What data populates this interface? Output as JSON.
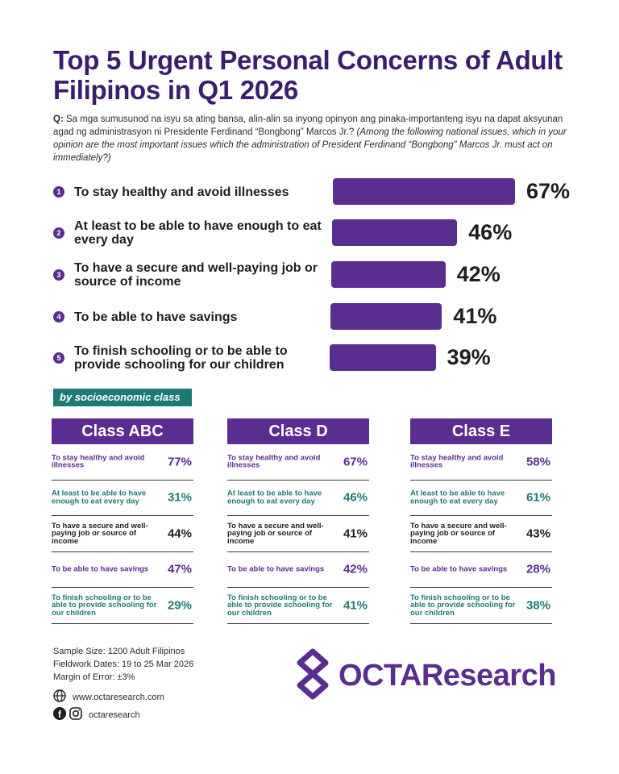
{
  "title": "Top 5 Urgent Personal Concerns of Adult Filipinos in Q1 2026",
  "question": {
    "prefix": "Q:",
    "tagalog": "Sa mga sumusunod na isyu sa ating bansa, alin-alin sa inyong opinyon ang pinaka-importanteng isyu na dapat aksyunan agad ng administrasyon ni Presidente Ferdinand “Bongbong” Marcos Jr.?",
    "english": "(Among the following national issues, which in your opinion are the most important issues which the administration of President Ferdinand “Bongbong” Marcos Jr. must act on immediately?)"
  },
  "chart_data": {
    "type": "bar",
    "categories": [
      "To stay healthy and avoid illnesses",
      "At least to be able to have enough to eat every day",
      "To have a secure and well-paying job or source of income",
      "To be able to have savings",
      "To finish schooling or to be able to provide schooling for our children"
    ],
    "ranks": [
      "1",
      "2",
      "3",
      "4",
      "5"
    ],
    "values": [
      67,
      46,
      42,
      41,
      39
    ],
    "value_labels": [
      "67%",
      "46%",
      "42%",
      "41%",
      "39%"
    ],
    "bar_color": "#5a2d91"
  },
  "segment_tag": "by socioeconomic class",
  "classes": [
    {
      "name": "Class ABC",
      "rows": [
        {
          "label": "To stay healthy and avoid illnesses",
          "value": "77%",
          "color": "#5a2d91"
        },
        {
          "label": "At least to be able to have enough to eat every day",
          "value": "31%",
          "color": "#1f7a74"
        },
        {
          "label": "To have a secure and well-paying job or source of income",
          "value": "44%",
          "color": "#1e1e1e"
        },
        {
          "label": "To be able to have savings",
          "value": "47%",
          "color": "#5a2d91"
        },
        {
          "label": "To finish schooling or to be able to provide schooling for our children",
          "value": "29%",
          "color": "#1f7a74"
        }
      ]
    },
    {
      "name": "Class D",
      "rows": [
        {
          "label": "To stay healthy and avoid illnesses",
          "value": "67%",
          "color": "#5a2d91"
        },
        {
          "label": "At least to be able to have enough to eat every day",
          "value": "46%",
          "color": "#1f7a74"
        },
        {
          "label": "To have a secure and well-paying job or source of income",
          "value": "41%",
          "color": "#1e1e1e"
        },
        {
          "label": "To be able to have savings",
          "value": "42%",
          "color": "#5a2d91"
        },
        {
          "label": "To finish schooling or to be able to provide schooling for our children",
          "value": "41%",
          "color": "#1f7a74"
        }
      ]
    },
    {
      "name": "Class E",
      "rows": [
        {
          "label": "To stay healthy and avoid illnesses",
          "value": "58%",
          "color": "#5a2d91"
        },
        {
          "label": "At least to be able to have enough to eat every day",
          "value": "61%",
          "color": "#1f7a74"
        },
        {
          "label": "To have a secure and well-paying job or source of income",
          "value": "43%",
          "color": "#1e1e1e"
        },
        {
          "label": "To be able to have savings",
          "value": "28%",
          "color": "#5a2d91"
        },
        {
          "label": "To finish schooling or to be able to provide schooling for our children",
          "value": "38%",
          "color": "#1f7a74"
        }
      ]
    }
  ],
  "footer": {
    "sample_size": "Sample Size: 1200 Adult Filipinos",
    "fieldwork": "Fieldwork Dates: 19 to 25 Mar 2026",
    "margin": "Margin of Error: ±3%",
    "website": "www.octaresearch.com",
    "social": "octaresearch"
  },
  "brand": {
    "name": "OCTAResearch",
    "color": "#5a2d91"
  }
}
